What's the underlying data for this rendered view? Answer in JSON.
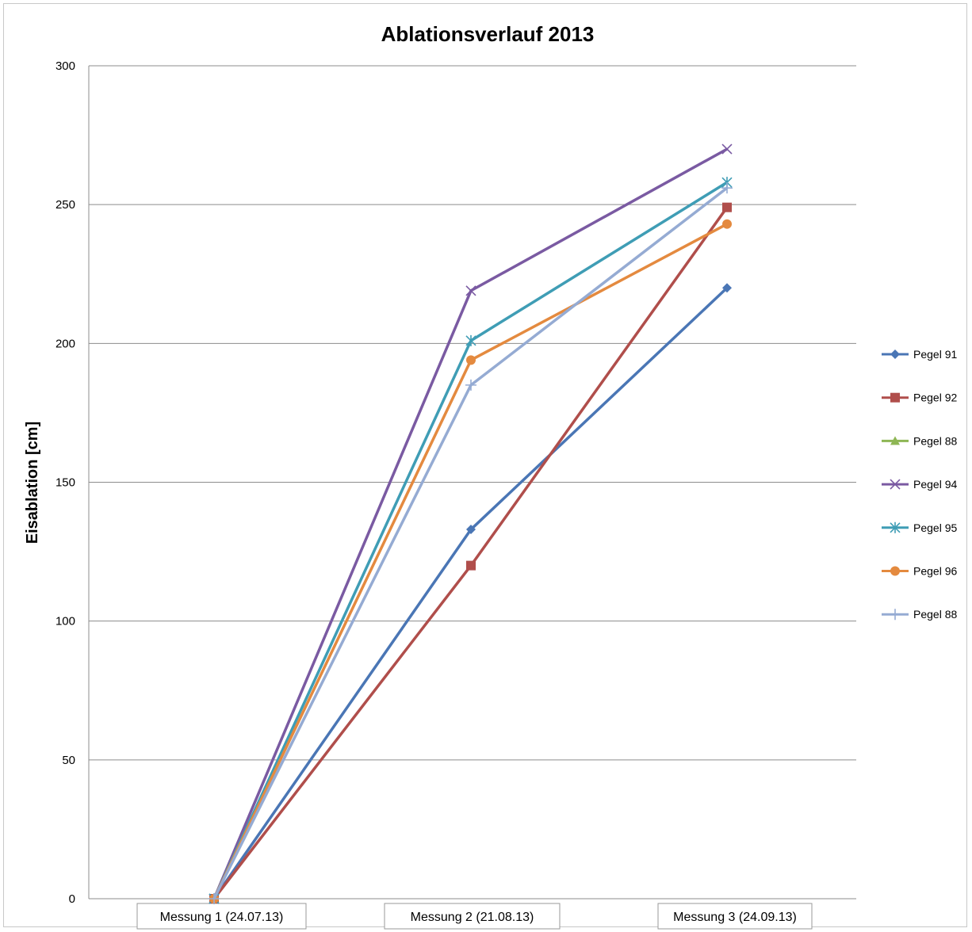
{
  "chart_data": {
    "type": "line",
    "title": "Ablationsverlauf 2013",
    "xlabel": "",
    "ylabel": "Eisablation [cm]",
    "categories": [
      "Messung 1 (24.07.13)",
      "Messung 2 (21.08.13)",
      "Messung 3 (24.09.13)"
    ],
    "ylim": [
      0,
      300
    ],
    "yticks": [
      0,
      50,
      100,
      150,
      200,
      250,
      300
    ],
    "grid": true,
    "legend": "right",
    "series": [
      {
        "name": "Pegel 91",
        "color": "#4a76b5",
        "marker": "diamond",
        "values": [
          0,
          133,
          220
        ]
      },
      {
        "name": "Pegel 92",
        "color": "#b04e4b",
        "marker": "square",
        "values": [
          0,
          120,
          249
        ]
      },
      {
        "name": "Pegel 88",
        "color": "#8eb654",
        "marker": "triangle",
        "values": [
          0,
          null,
          null
        ]
      },
      {
        "name": "Pegel 94",
        "color": "#7a5aa2",
        "marker": "x",
        "values": [
          0,
          219,
          270
        ]
      },
      {
        "name": "Pegel 95",
        "color": "#3f9db5",
        "marker": "star",
        "values": [
          0,
          201,
          258
        ]
      },
      {
        "name": "Pegel 96",
        "color": "#e48a3f",
        "marker": "circle",
        "values": [
          0,
          194,
          243
        ]
      },
      {
        "name": "Pegel 88",
        "color": "#95abd3",
        "marker": "plus",
        "values": [
          0,
          185,
          256
        ]
      }
    ]
  }
}
